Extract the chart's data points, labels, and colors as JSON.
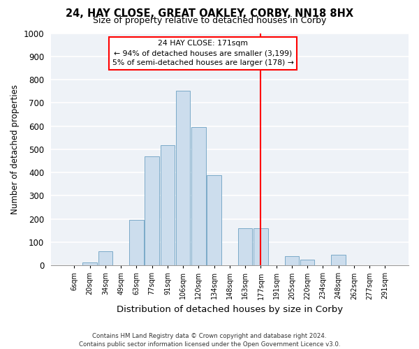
{
  "title": "24, HAY CLOSE, GREAT OAKLEY, CORBY, NN18 8HX",
  "subtitle": "Size of property relative to detached houses in Corby",
  "xlabel": "Distribution of detached houses by size in Corby",
  "ylabel": "Number of detached properties",
  "bin_labels": [
    "6sqm",
    "20sqm",
    "34sqm",
    "49sqm",
    "63sqm",
    "77sqm",
    "91sqm",
    "106sqm",
    "120sqm",
    "134sqm",
    "148sqm",
    "163sqm",
    "177sqm",
    "191sqm",
    "205sqm",
    "220sqm",
    "234sqm",
    "248sqm",
    "262sqm",
    "277sqm",
    "291sqm"
  ],
  "bar_values": [
    0,
    13,
    62,
    0,
    196,
    470,
    517,
    753,
    597,
    389,
    0,
    160,
    160,
    0,
    41,
    25,
    0,
    45,
    0,
    0,
    0
  ],
  "bar_color": "#ccdded",
  "bar_edge_color": "#7aaac8",
  "vline_index": 12,
  "vline_color": "red",
  "annotation_line1": "24 HAY CLOSE: 171sqm",
  "annotation_line2": "← 94% of detached houses are smaller (3,199)",
  "annotation_line3": "5% of semi-detached houses are larger (178) →",
  "box_edge_color": "red",
  "ylim": [
    0,
    1000
  ],
  "yticks": [
    0,
    100,
    200,
    300,
    400,
    500,
    600,
    700,
    800,
    900,
    1000
  ],
  "footer_line1": "Contains HM Land Registry data © Crown copyright and database right 2024.",
  "footer_line2": "Contains public sector information licensed under the Open Government Licence v3.0.",
  "bg_color": "#eef2f7",
  "title_fontsize": 10.5,
  "subtitle_fontsize": 9,
  "ylabel_fontsize": 8.5,
  "xlabel_fontsize": 9.5
}
